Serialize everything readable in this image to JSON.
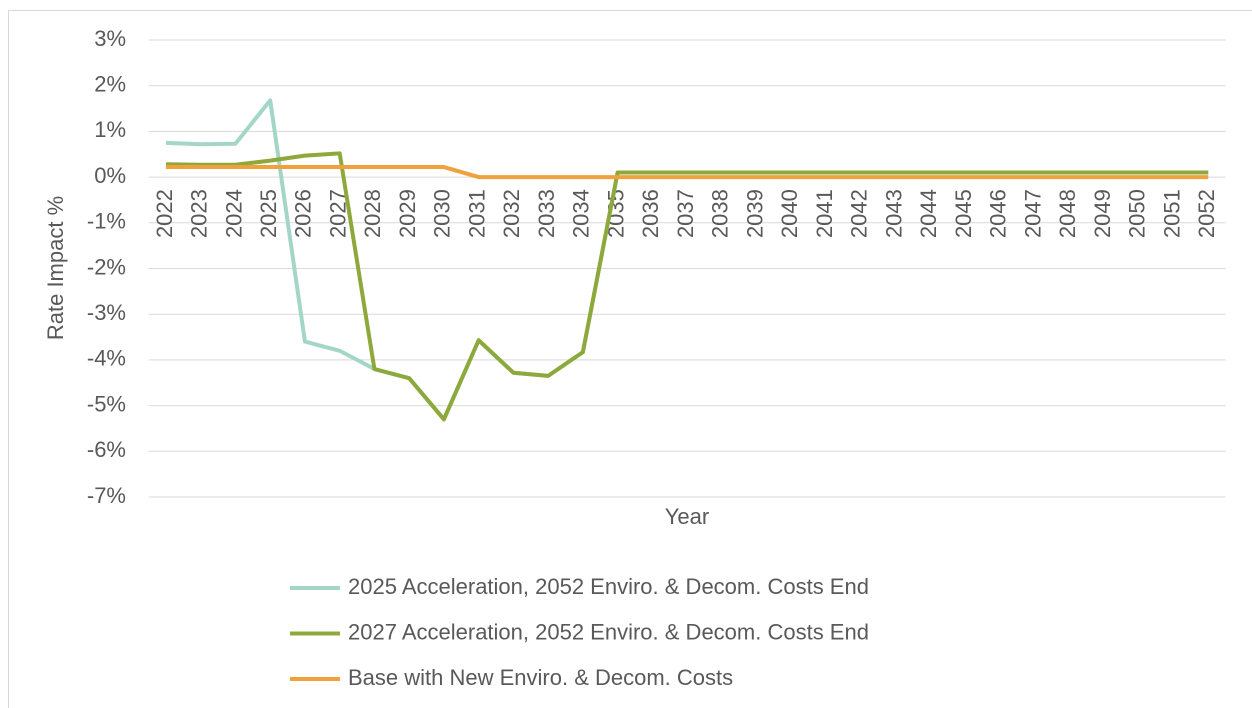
{
  "chart_data": {
    "type": "line",
    "x_label": "Year",
    "y_label": "Rate Impact %",
    "categories": [
      "2022",
      "2023",
      "2024",
      "2025",
      "2026",
      "2027",
      "2028",
      "2029",
      "2030",
      "2031",
      "2032",
      "2033",
      "2034",
      "2035",
      "2036",
      "2037",
      "2038",
      "2039",
      "2040",
      "2041",
      "2042",
      "2043",
      "2044",
      "2045",
      "2046",
      "2047",
      "2048",
      "2049",
      "2050",
      "2051",
      "2052"
    ],
    "series": [
      {
        "name": "2025 Acceleration, 2052 Enviro. & Decom. Costs End",
        "color": "#a3d6c9",
        "values": [
          0.75,
          0.72,
          0.73,
          1.68,
          -3.6,
          -3.8,
          -4.2,
          -4.4,
          -5.3,
          -3.57,
          -4.28,
          -4.35,
          -3.83,
          0.1,
          0.1,
          0.1,
          0.1,
          0.1,
          0.1,
          0.1,
          0.1,
          0.1,
          0.1,
          0.1,
          0.1,
          0.1,
          0.1,
          0.1,
          0.1,
          0.1,
          0.1
        ]
      },
      {
        "name": "2027 Acceleration, 2052 Enviro. & Decom. Costs End",
        "color": "#8da83b",
        "values": [
          0.28,
          0.27,
          0.27,
          0.36,
          0.47,
          0.52,
          -4.2,
          -4.4,
          -5.3,
          -3.57,
          -4.28,
          -4.35,
          -3.83,
          0.1,
          0.1,
          0.1,
          0.1,
          0.1,
          0.1,
          0.1,
          0.1,
          0.1,
          0.1,
          0.1,
          0.1,
          0.1,
          0.1,
          0.1,
          0.1,
          0.1,
          0.1
        ]
      },
      {
        "name": "Base with New Enviro. & Decom. Costs",
        "color": "#f0a13c",
        "values": [
          0.22,
          0.22,
          0.22,
          0.22,
          0.22,
          0.22,
          0.22,
          0.22,
          0.22,
          0,
          0,
          0,
          0,
          0,
          0,
          0,
          0,
          0,
          0,
          0,
          0,
          0,
          0,
          0,
          0,
          0,
          0,
          0,
          0,
          0,
          0
        ]
      }
    ],
    "ylim": [
      -7,
      3
    ],
    "yticks": [
      {
        "value": -7,
        "label": "-7%"
      },
      {
        "value": -6,
        "label": "-6%"
      },
      {
        "value": -5,
        "label": "-5%"
      },
      {
        "value": -4,
        "label": "-4%"
      },
      {
        "value": -3,
        "label": "-3%"
      },
      {
        "value": -2,
        "label": "-2%"
      },
      {
        "value": -1,
        "label": "-1%"
      },
      {
        "value": 0,
        "label": "0%"
      },
      {
        "value": 1,
        "label": "1%"
      },
      {
        "value": 2,
        "label": "2%"
      },
      {
        "value": 3,
        "label": "3%"
      }
    ],
    "grid": true,
    "legend": "bottom"
  }
}
